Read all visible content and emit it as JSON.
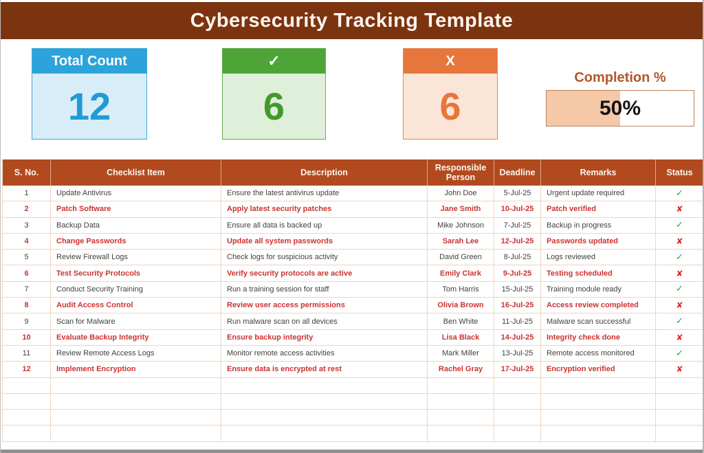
{
  "title": "Cybersecurity Tracking Template",
  "cards": {
    "total": {
      "label": "Total Count",
      "value": "12"
    },
    "done": {
      "label": "✓",
      "value": "6"
    },
    "pending": {
      "label": "X",
      "value": "6"
    }
  },
  "completion": {
    "label": "Completion %",
    "value": "50%",
    "percent": 50
  },
  "table": {
    "headers": [
      "S. No.",
      "Checklist Item",
      "Description",
      "Responsible Person",
      "Deadline",
      "Remarks",
      "Status"
    ],
    "status_icons": {
      "check": "✓",
      "cross": "✘"
    },
    "empty_row_count": 4,
    "rows": [
      {
        "sno": "1",
        "item": "Update Antivirus",
        "description": "Ensure the latest antivirus update",
        "person": "John Doe",
        "deadline": "5-Jul-25",
        "remarks": "Urgent update required",
        "status": "check"
      },
      {
        "sno": "2",
        "item": "Patch Software",
        "description": "Apply latest security patches",
        "person": "Jane Smith",
        "deadline": "10-Jul-25",
        "remarks": "Patch verified",
        "status": "cross"
      },
      {
        "sno": "3",
        "item": "Backup Data",
        "description": "Ensure all data is backed up",
        "person": "Mike Johnson",
        "deadline": "7-Jul-25",
        "remarks": "Backup in progress",
        "status": "check"
      },
      {
        "sno": "4",
        "item": "Change Passwords",
        "description": "Update all system passwords",
        "person": "Sarah Lee",
        "deadline": "12-Jul-25",
        "remarks": "Passwords updated",
        "status": "cross"
      },
      {
        "sno": "5",
        "item": "Review Firewall Logs",
        "description": "Check logs for suspicious activity",
        "person": "David Green",
        "deadline": "8-Jul-25",
        "remarks": "Logs reviewed",
        "status": "check"
      },
      {
        "sno": "6",
        "item": "Test Security Protocols",
        "description": "Verify security protocols are active",
        "person": "Emily Clark",
        "deadline": "9-Jul-25",
        "remarks": "Testing scheduled",
        "status": "cross"
      },
      {
        "sno": "7",
        "item": "Conduct Security Training",
        "description": "Run a training session for staff",
        "person": "Tom Harris",
        "deadline": "15-Jul-25",
        "remarks": "Training module ready",
        "status": "check"
      },
      {
        "sno": "8",
        "item": "Audit Access Control",
        "description": "Review user access permissions",
        "person": "Olivia Brown",
        "deadline": "16-Jul-25",
        "remarks": "Access review completed",
        "status": "cross"
      },
      {
        "sno": "9",
        "item": "Scan for Malware",
        "description": "Run malware scan on all devices",
        "person": "Ben White",
        "deadline": "11-Jul-25",
        "remarks": "Malware scan successful",
        "status": "check"
      },
      {
        "sno": "10",
        "item": "Evaluate Backup Integrity",
        "description": "Ensure backup integrity",
        "person": "Lisa Black",
        "deadline": "14-Jul-25",
        "remarks": "Integrity check done",
        "status": "cross"
      },
      {
        "sno": "11",
        "item": "Review Remote Access Logs",
        "description": "Monitor remote access activities",
        "person": "Mark Miller",
        "deadline": "13-Jul-25",
        "remarks": "Remote access monitored",
        "status": "check"
      },
      {
        "sno": "12",
        "item": "Implement Encryption",
        "description": "Ensure data is encrypted at rest",
        "person": "Rachel Gray",
        "deadline": "17-Jul-25",
        "remarks": "Encryption verified",
        "status": "cross"
      }
    ]
  },
  "colors": {
    "banner_bg": "#7C3410",
    "banner_text": "#FBF5ED",
    "header_bg": "#B14A1F",
    "header_text": "#FFF7EE",
    "grid_line": "#EBD6C1",
    "normal_text": "#3F3F3F",
    "alert_text": "#CD3232",
    "check": "#21A73C",
    "cross": "#DF2226",
    "card_total_header": "#2CA3DB",
    "card_total_body": "#D8EDF8",
    "card_total_value": "#1E9CD3",
    "card_total_border": "#3FA9DC",
    "card_done_header": "#4EA436",
    "card_done_body": "#DFF0DA",
    "card_done_value": "#44992B",
    "card_done_border": "#63AC4E",
    "card_pending_header": "#E6763C",
    "card_pending_body": "#FAE5D7",
    "card_pending_value": "#E6763C",
    "card_pending_border": "#E98A57",
    "completion_title": "#B2562B",
    "completion_fill": "#F5C9A7",
    "completion_border": "#BC835D",
    "completion_text": "#141414"
  }
}
